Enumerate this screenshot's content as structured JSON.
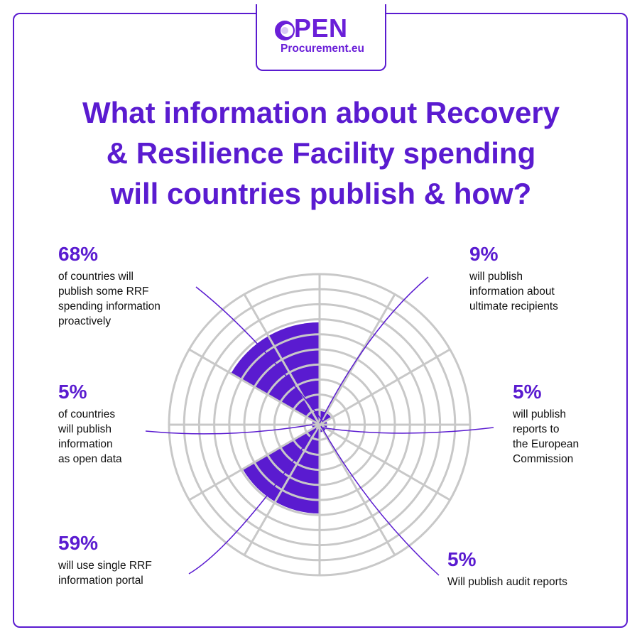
{
  "logo": {
    "word": "PEN",
    "sub": "Procurement.eu"
  },
  "title_lines": [
    "What information about Recovery",
    "& Resilience Facility spending",
    "will countries publish & how?"
  ],
  "colors": {
    "accent": "#5a1bd0",
    "grid": "#c8c8c8",
    "text": "#111111"
  },
  "chart_data": {
    "type": "polar-area",
    "rings": 10,
    "spokes": 12,
    "categories": [
      "of countries will publish some RRF spending information proactively",
      "of countries will publish information as open data",
      "will use single RRF information portal",
      "will publish information about ultimate recipients",
      "will publish reports to the European Commission",
      "Will publish audit reports"
    ],
    "series": [
      {
        "values": [
          68,
          5,
          59,
          9,
          5,
          5
        ]
      }
    ],
    "ylim": [
      0,
      100
    ],
    "grid": true
  },
  "stats": [
    {
      "pct": "68%",
      "desc": "of countries will\npublish some RRF\nspending information\nproactively"
    },
    {
      "pct": "5%",
      "desc": "of countries\nwill publish\ninformation\nas open data"
    },
    {
      "pct": "59%",
      "desc": "will use single RRF\ninformation portal"
    },
    {
      "pct": "9%",
      "desc": "will publish\ninformation about\nultimate recipients"
    },
    {
      "pct": "5%",
      "desc": "will publish\nreports to\nthe European\nCommission"
    },
    {
      "pct": "5%",
      "desc": "Will publish audit reports"
    }
  ]
}
